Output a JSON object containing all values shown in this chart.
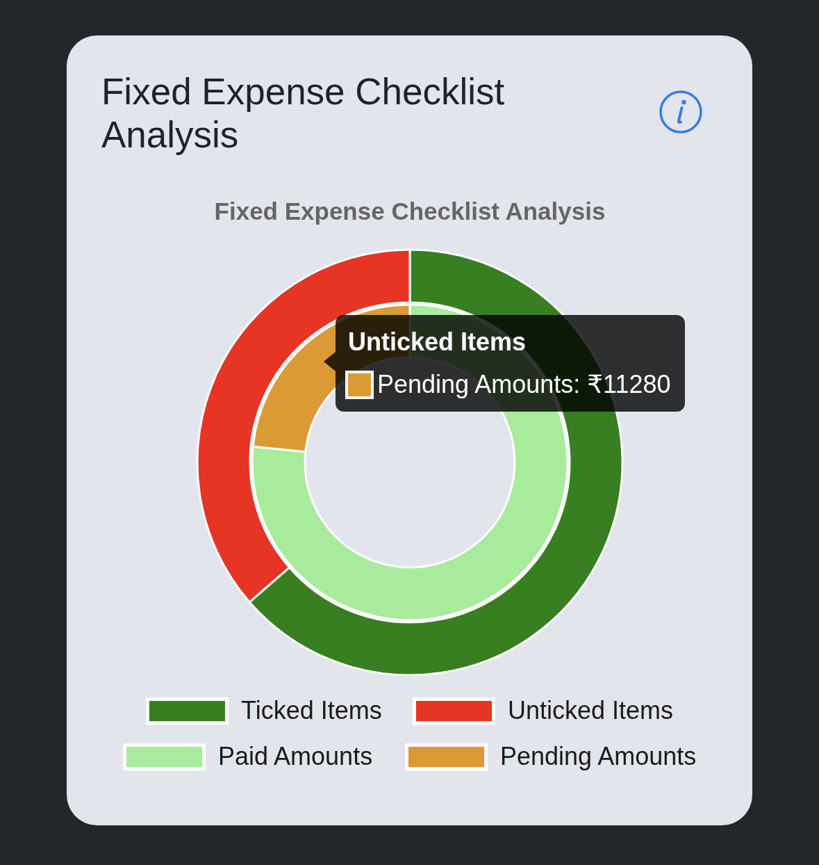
{
  "chart_data": [
    {
      "type": "donut",
      "title": "Fixed Expense Checklist Analysis",
      "subtitle": "Fixed Expense Checklist Analysis",
      "categories": [
        "Ticked Items",
        "Unticked Items"
      ],
      "values": [
        63.6,
        36.4
      ],
      "colors": [
        "#387f22",
        "#e63425"
      ],
      "legend": "bottom"
    },
    {
      "type": "donut",
      "categories": [
        "Paid Amounts",
        "Pending Amounts"
      ],
      "values": [
        76.6,
        23.4
      ],
      "colors": [
        "#a8eb9c",
        "#dc9a36"
      ],
      "legend": "bottom",
      "annotations": [
        "Unticked Items",
        {
          "text": "Pending Amounts: ₹11280",
          "x": "Pending Amounts"
        }
      ]
    }
  ]
}
